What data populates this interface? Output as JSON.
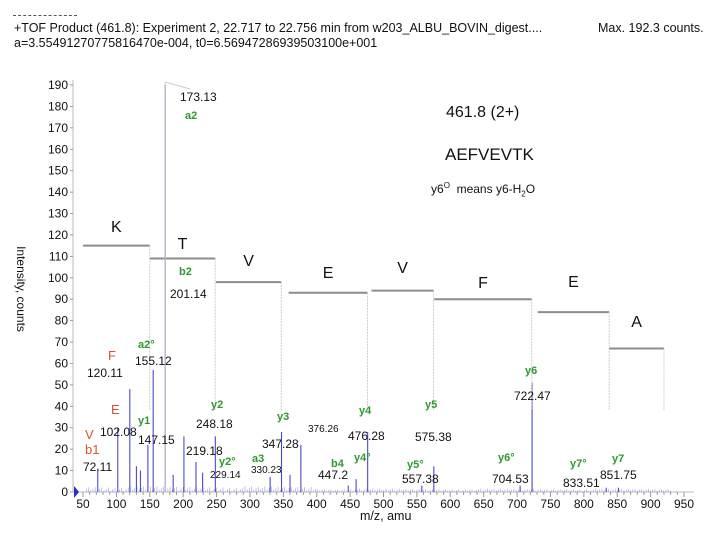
{
  "header": {
    "line1": "+TOF Product (461.8): Experiment 2, 22.717 to 22.756 min from w203_ALBU_BOVIN_digest....",
    "max": "Max. 192.3 counts.",
    "line2": "a=3.554912707758164 70e-004, t0=6.56947286939503100e+001"
  },
  "info": {
    "precursor": "461.8  (2+)",
    "sequence": "AEFVEVTK",
    "note_prefix": "y6",
    "note_sup": "O",
    "note_mid": "  means y6-H",
    "note_sub": "2",
    "note_end": "O"
  },
  "colors": {
    "spectrum": "#4a4ad0",
    "ion_label": "#2e9a2e",
    "residue_label": "#d8532a",
    "ladder": "#8c8c8c",
    "axis": "#333333"
  },
  "chart_data": {
    "type": "bar",
    "title": "+TOF Product (461.8): Experiment 2, 22.717 to 22.756 min from w203_ALBU_BOVIN_digest....",
    "xlabel": "m/z, amu",
    "ylabel": "Intensity, counts",
    "xlim": [
      40,
      960
    ],
    "ylim": [
      0,
      192
    ],
    "xticks": [
      50,
      100,
      150,
      200,
      250,
      300,
      350,
      400,
      450,
      500,
      550,
      600,
      650,
      700,
      750,
      800,
      850,
      900,
      950
    ],
    "yticks": [
      0,
      10,
      20,
      30,
      40,
      50,
      60,
      70,
      80,
      90,
      100,
      110,
      120,
      130,
      140,
      150,
      160,
      170,
      180,
      190
    ],
    "grid": false,
    "peaks": [
      {
        "mz": 72.11,
        "intensity": 11,
        "label": "72.11",
        "ion": "b1"
      },
      {
        "mz": 102.08,
        "intensity": 30,
        "label": "102.08",
        "ion": ""
      },
      {
        "mz": 120.11,
        "intensity": 48,
        "label": "120.11",
        "ion": ""
      },
      {
        "mz": 130,
        "intensity": 12,
        "label": "",
        "ion": ""
      },
      {
        "mz": 136,
        "intensity": 10,
        "label": "",
        "ion": ""
      },
      {
        "mz": 147.15,
        "intensity": 22,
        "label": "147.15",
        "ion": "y1"
      },
      {
        "mz": 155.12,
        "intensity": 57,
        "label": "155.12",
        "ion": "a2°"
      },
      {
        "mz": 173.13,
        "intensity": 190,
        "label": "173.13",
        "ion": "a2"
      },
      {
        "mz": 185,
        "intensity": 8,
        "label": "",
        "ion": ""
      },
      {
        "mz": 201.14,
        "intensity": 26,
        "label": "201.14",
        "ion": "b2"
      },
      {
        "mz": 219.18,
        "intensity": 14,
        "label": "219.18",
        "ion": ""
      },
      {
        "mz": 229.14,
        "intensity": 9,
        "label": "229.14",
        "ion": "y2°"
      },
      {
        "mz": 248.18,
        "intensity": 26,
        "label": "248.18",
        "ion": "y2"
      },
      {
        "mz": 330.23,
        "intensity": 7,
        "label": "330.23",
        "ion": "a3"
      },
      {
        "mz": 347.28,
        "intensity": 28,
        "label": "347.28",
        "ion": "y3"
      },
      {
        "mz": 360,
        "intensity": 8,
        "label": "",
        "ion": ""
      },
      {
        "mz": 376.26,
        "intensity": 22,
        "label": "376.26",
        "ion": ""
      },
      {
        "mz": 447.2,
        "intensity": 3,
        "label": "447.2",
        "ion": "b4"
      },
      {
        "mz": 459,
        "intensity": 6,
        "label": "",
        "ion": "y4°"
      },
      {
        "mz": 476.28,
        "intensity": 28,
        "label": "476.28",
        "ion": "y4"
      },
      {
        "mz": 557.38,
        "intensity": 3,
        "label": "557.38",
        "ion": "y5°"
      },
      {
        "mz": 575.38,
        "intensity": 12,
        "label": "575.38",
        "ion": "y5"
      },
      {
        "mz": 704.53,
        "intensity": 3,
        "label": "704.53",
        "ion": "y6°"
      },
      {
        "mz": 722.47,
        "intensity": 51,
        "label": "722.47",
        "ion": "y6"
      },
      {
        "mz": 833.51,
        "intensity": 2,
        "label": "833.51",
        "ion": "y7°"
      },
      {
        "mz": 851.75,
        "intensity": 2,
        "label": "851.75",
        "ion": "y7"
      }
    ],
    "sequence_ladder": [
      {
        "residue": "K",
        "x0": 50,
        "x1": 150,
        "y": 115
      },
      {
        "residue": "T",
        "x0": 150,
        "x1": 248,
        "y": 109
      },
      {
        "residue": "V",
        "x0": 249,
        "x1": 347,
        "y": 98
      },
      {
        "residue": "E",
        "x0": 358,
        "x1": 476,
        "y": 93
      },
      {
        "residue": "V",
        "x0": 482,
        "x1": 575,
        "y": 94
      },
      {
        "residue": "F",
        "x0": 576,
        "x1": 722,
        "y": 90
      },
      {
        "residue": "E",
        "x0": 731,
        "x1": 838,
        "y": 84
      },
      {
        "residue": "A",
        "x0": 838,
        "x1": 920,
        "y": 67
      }
    ],
    "annotations": {
      "residue_labels_low_mass": [
        {
          "text": "F",
          "mz": 120.11
        },
        {
          "text": "E",
          "mz": 102.08
        },
        {
          "text": "V",
          "mz": 72.11
        }
      ]
    }
  }
}
